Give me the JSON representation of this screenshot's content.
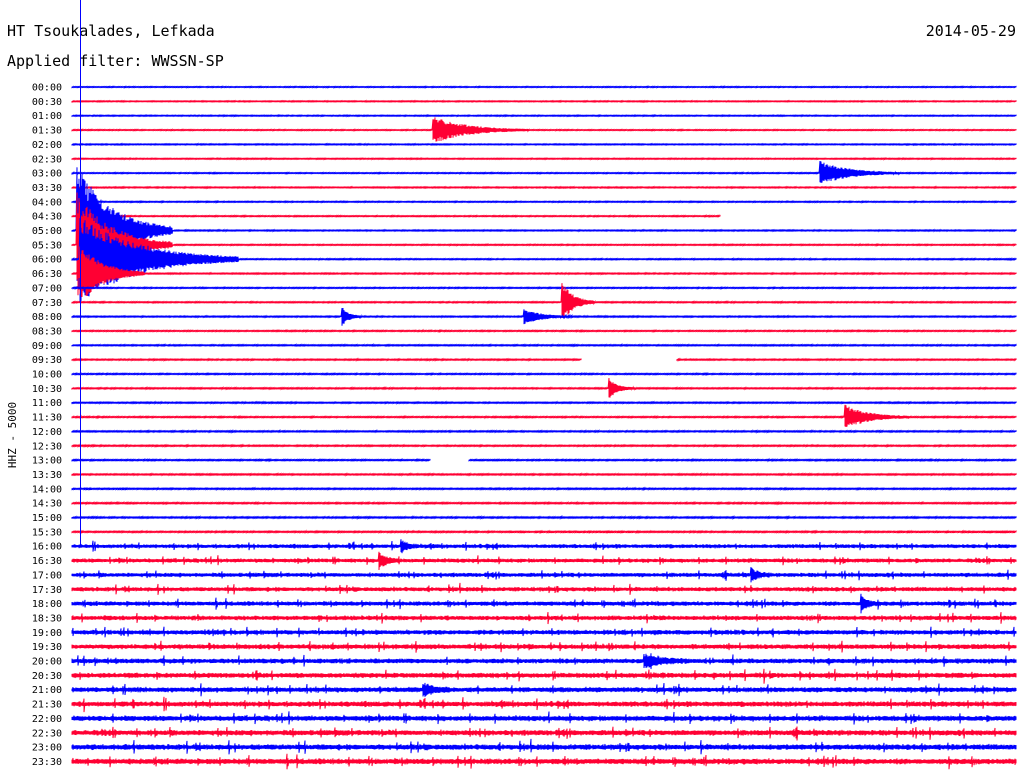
{
  "header": {
    "station": "HT Tsoukalades, Lefkada",
    "date": "2014-05-29",
    "filter": "Applied filter: WWSSN-SP"
  },
  "channel_label": "HHZ - 5000",
  "colors": {
    "odd_row": "#0000ff",
    "even_row": "#ff0033",
    "marker": "#0000ff"
  },
  "chart_data": {
    "type": "line",
    "title": "HT Tsoukalades, Lefkada",
    "subtitle": "Applied filter: WWSSN-SP",
    "ylabel": "HHZ - 5000",
    "xlabel": "",
    "grid": false,
    "rows_per_day": 48,
    "minutes_per_row": 30,
    "tick_labels": [
      "00:00",
      "00:30",
      "01:00",
      "01:30",
      "02:00",
      "02:30",
      "03:00",
      "03:30",
      "04:00",
      "04:30",
      "05:00",
      "05:30",
      "06:00",
      "06:30",
      "07:00",
      "07:30",
      "08:00",
      "08:30",
      "09:00",
      "09:30",
      "10:00",
      "10:30",
      "11:00",
      "11:30",
      "12:00",
      "12:30",
      "13:00",
      "13:30",
      "14:00",
      "14:30",
      "15:00",
      "15:30",
      "16:00",
      "16:30",
      "17:00",
      "17:30",
      "18:00",
      "18:30",
      "19:00",
      "19:30",
      "20:00",
      "20:30",
      "21:00",
      "21:30",
      "22:00",
      "22:30",
      "23:00",
      "23:30"
    ],
    "events": [
      {
        "row": 3,
        "minute": 11.5,
        "amplitude": 0.9,
        "duration_min": 3
      },
      {
        "row": 6,
        "minute": 23.8,
        "amplitude": 0.8,
        "duration_min": 2.5
      },
      {
        "row": 10,
        "minute": 0.2,
        "amplitude": 4.5,
        "duration_min": 3
      },
      {
        "row": 11,
        "minute": 0.2,
        "amplitude": 3.5,
        "duration_min": 3
      },
      {
        "row": 12,
        "minute": 0.3,
        "amplitude": 3.0,
        "duration_min": 5
      },
      {
        "row": 13,
        "minute": 0.3,
        "amplitude": 2.0,
        "duration_min": 2
      },
      {
        "row": 16,
        "minute": 8.6,
        "amplitude": 0.6,
        "duration_min": 0.6
      },
      {
        "row": 16,
        "minute": 14.4,
        "amplitude": 0.5,
        "duration_min": 1.5
      },
      {
        "row": 15,
        "minute": 15.6,
        "amplitude": 1.3,
        "duration_min": 1
      },
      {
        "row": 21,
        "minute": 17.1,
        "amplitude": 0.6,
        "duration_min": 0.8
      },
      {
        "row": 23,
        "minute": 24.6,
        "amplitude": 0.8,
        "duration_min": 2
      },
      {
        "row": 32,
        "minute": 10.5,
        "amplitude": 0.4,
        "duration_min": 0.5
      },
      {
        "row": 33,
        "minute": 9.8,
        "amplitude": 0.5,
        "duration_min": 0.6
      },
      {
        "row": 34,
        "minute": 21.6,
        "amplitude": 0.4,
        "duration_min": 0.6
      },
      {
        "row": 36,
        "minute": 25.1,
        "amplitude": 0.5,
        "duration_min": 0.5
      },
      {
        "row": 40,
        "minute": 18.2,
        "amplitude": 0.4,
        "duration_min": 1.5
      },
      {
        "row": 42,
        "minute": 11.2,
        "amplitude": 0.4,
        "duration_min": 0.8
      }
    ],
    "gaps": [
      {
        "row": 9,
        "start_minute": 20.6,
        "end_minute": 30
      },
      {
        "row": 19,
        "start_minute": 16.2,
        "end_minute": 19.2
      },
      {
        "row": 26,
        "start_minute": 11.4,
        "end_minute": 12.6
      }
    ]
  }
}
